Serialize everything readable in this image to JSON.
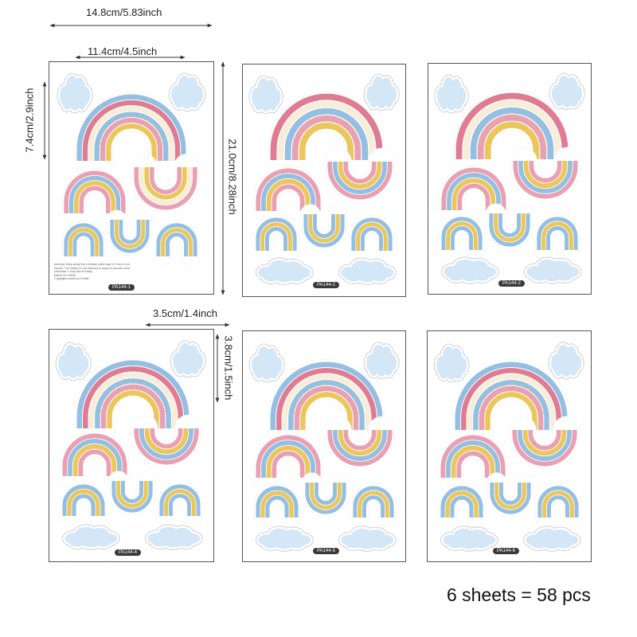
{
  "dimensions": {
    "total_width": "14.8cm/5.83inch",
    "art_width": "11.4cm/4.5inch",
    "rainbow_height": "7.4cm/2.9inch",
    "sheet_height": "21.0cm/8.28inch",
    "small_width": "3.5cm/1.4inch",
    "small_height": "3.8cm/1.5inch"
  },
  "sheets": [
    {
      "code": "PA144-1",
      "layout": "a",
      "fine_print": [
        "warning: Keep away from children under age of 3 due to choking",
        "hazard. The sticker is only allowed to apply on smooth surface,",
        "otherwise, it may fall off easily.",
        "MADE IN CHINA",
        "Copyright owned by Funlife"
      ]
    },
    {
      "code": "PA144-2",
      "layout": "b"
    },
    {
      "code": "PA144-2",
      "layout": "b"
    },
    {
      "code": "PA144-4",
      "layout": "c"
    },
    {
      "code": "PA144-5",
      "layout": "c"
    },
    {
      "code": "PA144-6",
      "layout": "c"
    }
  ],
  "caption": "6 sheets = 58 pcs",
  "colors": {
    "pink": "#e8a0b2",
    "red_pink": "#df7b92",
    "blue": "#94bfe2",
    "light_blue": "#d4e7f7",
    "yellow": "#ebc65a",
    "cream": "#f6eed9",
    "sheet_border": "#555555"
  }
}
